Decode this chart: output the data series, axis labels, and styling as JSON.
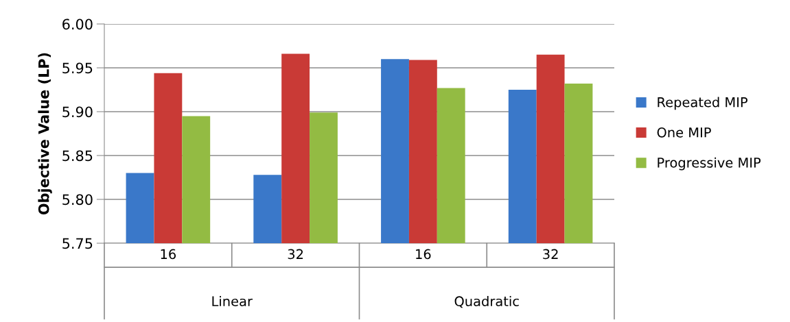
{
  "chart_data": {
    "type": "bar",
    "categories": [
      "16",
      "32",
      "16",
      "32"
    ],
    "ylabel": "Objective Value (LP)",
    "annotations": [
      "Linear",
      "Quadratic"
    ],
    "ylim": [
      5.75,
      6.0
    ],
    "yticks": [
      {
        "value": 5.75,
        "label": "5.75"
      },
      {
        "value": 5.8,
        "label": "5.80"
      },
      {
        "value": 5.85,
        "label": "5.85"
      },
      {
        "value": 5.9,
        "label": "5.90"
      },
      {
        "value": 5.95,
        "label": "5.95"
      },
      {
        "value": 6.0,
        "label": "6.00"
      }
    ],
    "grid": "y",
    "legend": "right",
    "series": [
      {
        "name": "Repeated MIP",
        "color": "#3a78c9",
        "values": [
          5.83,
          5.828,
          5.96,
          5.925
        ]
      },
      {
        "name": "One MIP",
        "color": "#c93a36",
        "values": [
          5.944,
          5.966,
          5.959,
          5.965
        ]
      },
      {
        "name": "Progressive MIP",
        "color": "#93bb43",
        "values": [
          5.895,
          5.899,
          5.927,
          5.932
        ]
      }
    ]
  }
}
